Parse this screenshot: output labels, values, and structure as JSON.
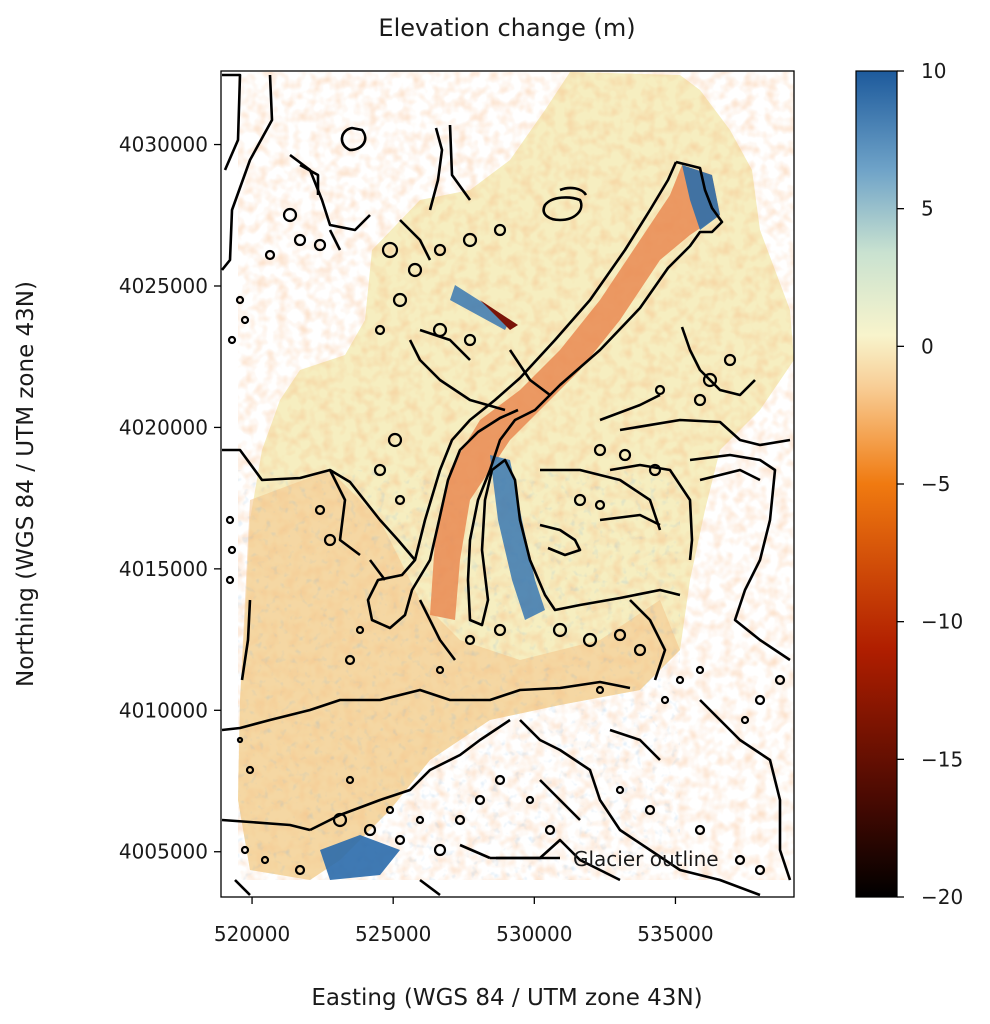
{
  "title": "Elevation change (m)",
  "x_axis": {
    "label": "Easting (WGS 84 / UTM zone 43N)",
    "ticks": [
      "520000",
      "525000",
      "530000",
      "535000"
    ],
    "tick_values": [
      520000,
      525000,
      530000,
      535000
    ],
    "range": [
      518900,
      539200
    ]
  },
  "y_axis": {
    "label": "Northing (WGS 84 / UTM zone 43N)",
    "ticks": [
      "4030000",
      "4025000",
      "4020000",
      "4015000",
      "4010000",
      "4005000"
    ],
    "tick_values": [
      4030000,
      4025000,
      4020000,
      4015000,
      4010000,
      4005000
    ],
    "range": [
      4003400,
      4032600
    ]
  },
  "colorbar": {
    "ticks": [
      "10",
      "5",
      "0",
      "−5",
      "−10",
      "−15",
      "−20"
    ],
    "tick_values": [
      10,
      5,
      0,
      -5,
      -10,
      -15,
      -20
    ],
    "range": [
      -20,
      10
    ],
    "colormap": "RdYlBu-style diverging (black-red-orange-cream-blue)",
    "colors": [
      "#000000",
      "#5a0a00",
      "#b42200",
      "#f07800",
      "#f8d6a0",
      "#f7f4c8",
      "#a8cfd6",
      "#4f8fc0",
      "#1f5fa0"
    ]
  },
  "legend": {
    "entries": [
      {
        "label": "Glacier outline",
        "color": "#000000"
      }
    ],
    "placement": "lower-right"
  },
  "colors": {
    "outline": "#000000",
    "negative_change": "#e8682a",
    "positive_change": "#1f5fa0",
    "stable": "#f5f2c6"
  }
}
